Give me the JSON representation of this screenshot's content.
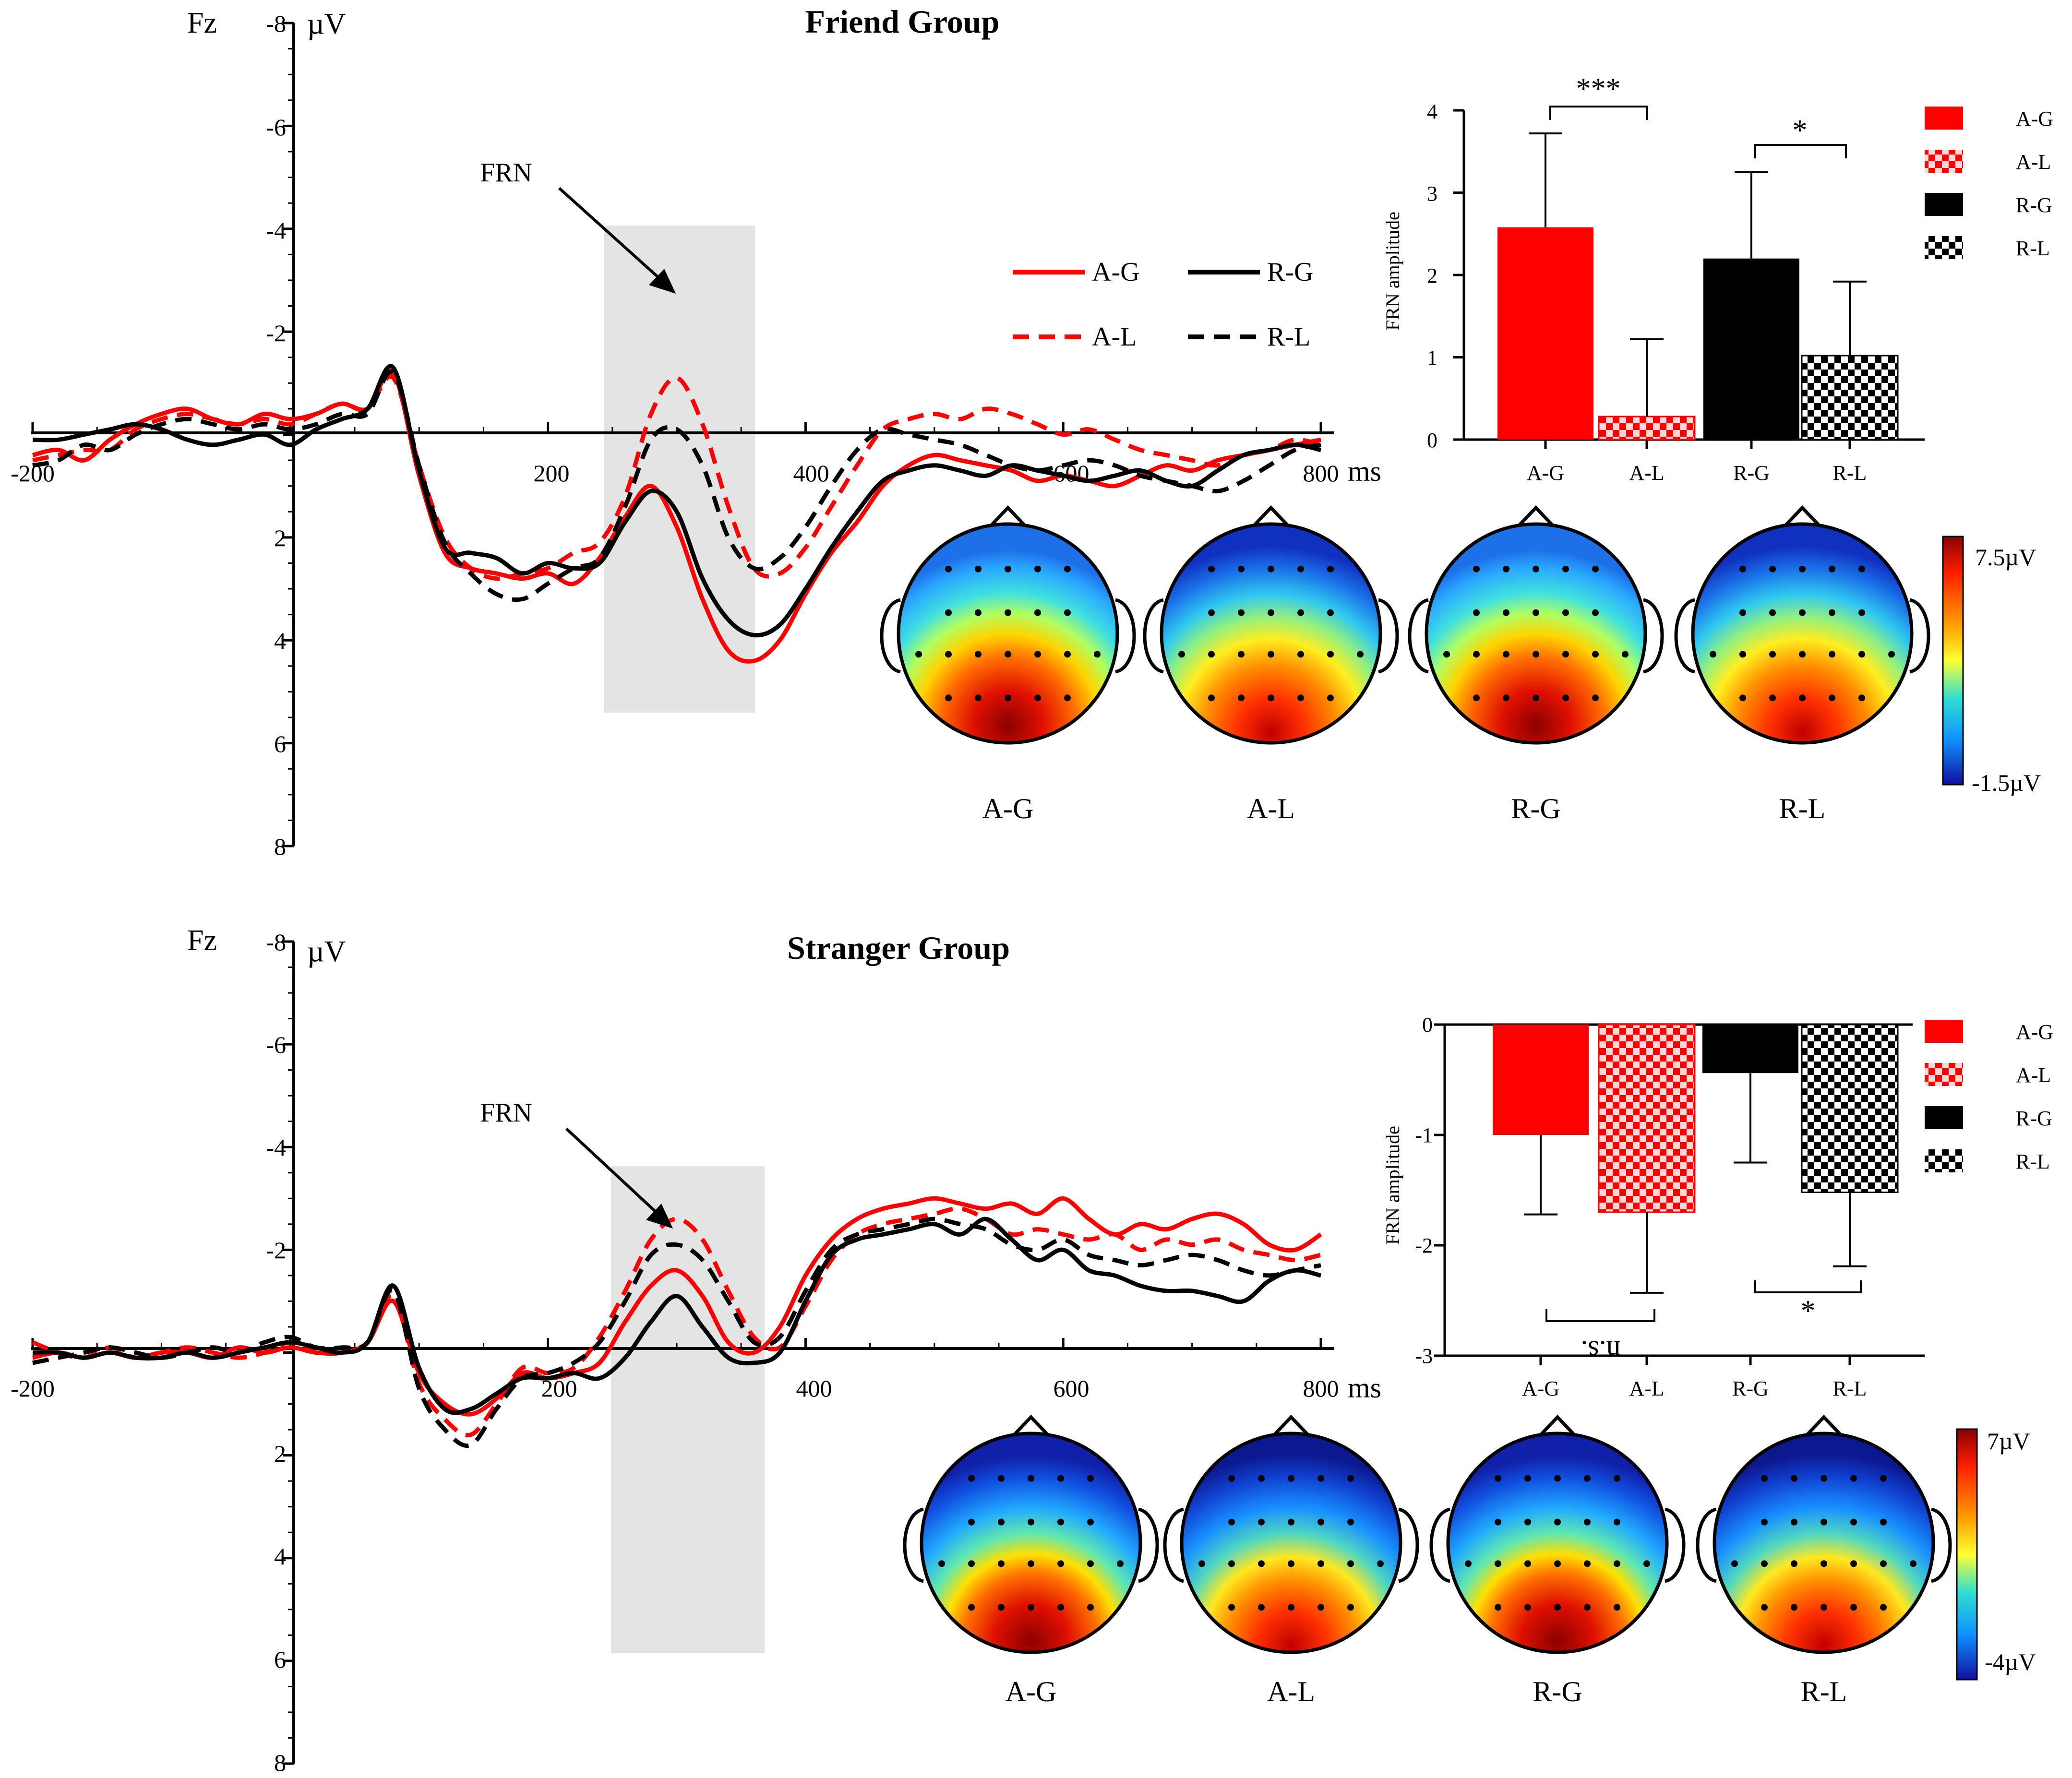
{
  "colors": {
    "red": "#ff0000",
    "black": "#000000",
    "shade": "#e4e4e4"
  },
  "icons": {
    "arrow": "arrow-icon",
    "head": "scalp-head-icon"
  },
  "scalp_condition_order": [
    "A-G",
    "A-L",
    "R-G",
    "R-L"
  ],
  "chart_data": [
    {
      "type": "line",
      "title": "Friend Group",
      "channel": "Fz",
      "ylabel": "µV",
      "xunit": "ms",
      "annotation": "FRN",
      "xlim": [
        -200,
        800
      ],
      "ylim": [
        -8,
        8
      ],
      "y_inverted": true,
      "xticks": [
        "-200",
        "200",
        "400",
        "600",
        "800"
      ],
      "yticks": [
        "-8",
        "-6",
        "-4",
        "-2",
        "2",
        "4",
        "6",
        "8"
      ],
      "shaded_window_ms": [
        240,
        355
      ],
      "x": [
        -200,
        -180,
        -160,
        -140,
        -120,
        -100,
        -80,
        -60,
        -40,
        -20,
        0,
        20,
        40,
        60,
        80,
        100,
        120,
        140,
        160,
        180,
        200,
        220,
        240,
        260,
        280,
        300,
        320,
        340,
        360,
        380,
        400,
        420,
        440,
        460,
        480,
        500,
        520,
        540,
        560,
        580,
        600,
        620,
        640,
        660,
        680,
        700,
        720,
        740,
        760,
        780,
        800
      ],
      "series": [
        {
          "name": "A-G",
          "color": "#ff0000",
          "dash": false,
          "values": [
            0.4,
            0.3,
            0.5,
            0.1,
            -0.2,
            -0.4,
            -0.5,
            -0.3,
            -0.2,
            -0.4,
            -0.3,
            -0.4,
            -0.6,
            -0.5,
            -1.2,
            0.8,
            2.3,
            2.6,
            2.7,
            2.8,
            2.7,
            2.9,
            2.4,
            1.6,
            1.0,
            1.8,
            3.2,
            4.2,
            4.4,
            4.0,
            3.1,
            2.3,
            1.7,
            1.0,
            0.6,
            0.4,
            0.5,
            0.6,
            0.7,
            0.9,
            0.8,
            0.9,
            1.0,
            0.8,
            0.6,
            0.7,
            0.5,
            0.4,
            0.3,
            0.2,
            0.1
          ]
        },
        {
          "name": "A-L",
          "color": "#ff0000",
          "dash": true,
          "values": [
            0.5,
            0.4,
            0.3,
            0.3,
            -0.1,
            -0.3,
            -0.4,
            -0.3,
            -0.2,
            -0.3,
            -0.2,
            -0.4,
            -0.6,
            -0.5,
            -1.1,
            0.6,
            2.0,
            2.6,
            2.8,
            2.7,
            2.6,
            2.3,
            2.1,
            1.2,
            -0.4,
            -1.1,
            -0.2,
            1.4,
            2.6,
            2.7,
            2.2,
            1.4,
            0.6,
            -0.1,
            -0.3,
            -0.4,
            -0.3,
            -0.5,
            -0.4,
            -0.2,
            0.0,
            -0.1,
            0.1,
            0.3,
            0.4,
            0.5,
            0.6,
            0.4,
            0.3,
            0.1,
            0.2
          ]
        },
        {
          "name": "R-G",
          "color": "#000000",
          "dash": false,
          "values": [
            0.1,
            0.1,
            0.0,
            -0.1,
            -0.2,
            -0.1,
            0.1,
            0.2,
            0.1,
            0.0,
            0.2,
            -0.1,
            -0.3,
            -0.5,
            -1.3,
            0.7,
            2.2,
            2.3,
            2.4,
            2.7,
            2.5,
            2.6,
            2.5,
            1.7,
            1.1,
            1.5,
            2.8,
            3.6,
            3.9,
            3.7,
            3.0,
            2.2,
            1.5,
            0.9,
            0.7,
            0.6,
            0.7,
            0.8,
            0.6,
            0.7,
            0.8,
            0.9,
            0.8,
            0.7,
            0.9,
            1.0,
            0.7,
            0.4,
            0.3,
            0.2,
            0.3
          ]
        },
        {
          "name": "R-L",
          "color": "#000000",
          "dash": true,
          "values": [
            0.6,
            0.5,
            0.2,
            0.3,
            0.0,
            -0.2,
            -0.3,
            -0.2,
            -0.1,
            -0.2,
            -0.1,
            -0.2,
            -0.4,
            -0.4,
            -1.2,
            0.6,
            2.1,
            2.7,
            3.1,
            3.2,
            2.9,
            2.6,
            2.4,
            1.4,
            0.1,
            -0.1,
            0.6,
            2.0,
            2.6,
            2.4,
            1.8,
            1.0,
            0.3,
            -0.1,
            0.0,
            0.1,
            0.2,
            0.4,
            0.6,
            0.7,
            0.6,
            0.5,
            0.6,
            0.8,
            0.9,
            1.0,
            1.1,
            0.9,
            0.6,
            0.3,
            0.2
          ]
        }
      ]
    },
    {
      "type": "bar",
      "title": "",
      "ylabel": "FRN amplitude",
      "ylim": [
        0,
        4
      ],
      "yticks": [
        "0",
        "1",
        "2",
        "3",
        "4"
      ],
      "categories": [
        "A-G",
        "A-L",
        "R-G",
        "R-L"
      ],
      "values": [
        2.58,
        0.28,
        2.2,
        1.02
      ],
      "errors": [
        1.14,
        0.94,
        1.05,
        0.9
      ],
      "patterns": [
        "solid-red",
        "checker-red",
        "solid-black",
        "checker-black"
      ],
      "significance": [
        {
          "pair": [
            "A-G",
            "A-L"
          ],
          "label": "***"
        },
        {
          "pair": [
            "R-G",
            "R-L"
          ],
          "label": "*"
        }
      ]
    },
    {
      "type": "heatmap",
      "title": "",
      "colorbar": {
        "max_label": "7.5µV",
        "min_label": "-1.5µV",
        "max": 7.5,
        "min": -1.5
      },
      "maps": [
        {
          "label": "A-G",
          "posterior_peak": 7.3,
          "frontal_level": -0.4
        },
        {
          "label": "A-L",
          "posterior_peak": 6.4,
          "frontal_level": -1.2
        },
        {
          "label": "R-G",
          "posterior_peak": 7.0,
          "frontal_level": -0.4
        },
        {
          "label": "R-L",
          "posterior_peak": 5.9,
          "frontal_level": -0.8
        }
      ]
    },
    {
      "type": "line",
      "title": "Stranger Group",
      "channel": "Fz",
      "ylabel": "µV",
      "xunit": "ms",
      "annotation": "FRN",
      "xlim": [
        -200,
        800
      ],
      "ylim": [
        -8,
        8
      ],
      "y_inverted": true,
      "xticks": [
        "-200",
        "200",
        "400",
        "600",
        "800"
      ],
      "yticks": [
        "-8",
        "-6",
        "-4",
        "-2",
        "2",
        "4",
        "6",
        "8"
      ],
      "shaded_window_ms": [
        250,
        365
      ],
      "x": [
        -200,
        -180,
        -160,
        -140,
        -120,
        -100,
        -80,
        -60,
        -40,
        -20,
        0,
        20,
        40,
        60,
        80,
        100,
        120,
        140,
        160,
        180,
        200,
        220,
        240,
        260,
        280,
        300,
        320,
        340,
        360,
        380,
        400,
        420,
        440,
        460,
        480,
        500,
        520,
        540,
        560,
        580,
        600,
        620,
        640,
        660,
        680,
        700,
        720,
        740,
        760,
        780,
        800
      ],
      "series": [
        {
          "name": "A-G",
          "color": "#ff0000",
          "dash": false,
          "values": [
            0.1,
            0.0,
            0.1,
            0.0,
            0.1,
            0.0,
            0.0,
            0.1,
            -0.1,
            0.0,
            -0.1,
            0.0,
            0.0,
            -0.2,
            -1.0,
            0.4,
            1.0,
            1.2,
            0.9,
            0.4,
            0.5,
            0.4,
            0.2,
            -0.6,
            -1.3,
            -1.6,
            -1.1,
            -0.2,
            0.0,
            -0.5,
            -1.5,
            -2.2,
            -2.6,
            -2.8,
            -2.9,
            -3.0,
            -2.9,
            -2.8,
            -2.9,
            -2.7,
            -3.0,
            -2.6,
            -2.3,
            -2.5,
            -2.4,
            -2.6,
            -2.7,
            -2.5,
            -2.1,
            -2.0,
            -2.3
          ]
        },
        {
          "name": "A-L",
          "color": "#ff0000",
          "dash": true,
          "values": [
            -0.2,
            0.0,
            0.1,
            -0.1,
            0.1,
            0.0,
            -0.1,
            0.0,
            0.1,
            0.0,
            -0.2,
            0.0,
            0.0,
            -0.2,
            -1.1,
            0.6,
            1.3,
            1.6,
            1.0,
            0.3,
            0.4,
            0.3,
            -0.3,
            -1.2,
            -2.2,
            -2.6,
            -2.2,
            -1.2,
            -0.3,
            -0.1,
            -0.9,
            -1.8,
            -2.3,
            -2.5,
            -2.6,
            -2.7,
            -2.8,
            -2.6,
            -2.3,
            -2.4,
            -2.3,
            -2.2,
            -2.3,
            -2.0,
            -2.2,
            -2.1,
            -2.2,
            -2.0,
            -1.9,
            -1.8,
            -1.9
          ]
        },
        {
          "name": "R-G",
          "color": "#000000",
          "dash": false,
          "values": [
            0.0,
            0.0,
            0.1,
            0.0,
            0.1,
            0.1,
            0.0,
            0.1,
            0.0,
            -0.1,
            -0.2,
            -0.1,
            0.0,
            -0.2,
            -1.3,
            0.3,
            1.1,
            1.1,
            0.8,
            0.5,
            0.5,
            0.4,
            0.5,
            0.1,
            -0.6,
            -1.1,
            -0.5,
            0.1,
            0.2,
            0.0,
            -1.0,
            -1.9,
            -2.2,
            -2.3,
            -2.4,
            -2.5,
            -2.3,
            -2.6,
            -2.2,
            -1.8,
            -2.0,
            -1.6,
            -1.5,
            -1.3,
            -1.2,
            -1.2,
            -1.1,
            -1.0,
            -1.4,
            -1.6,
            -1.5
          ]
        },
        {
          "name": "R-L",
          "color": "#000000",
          "dash": true,
          "values": [
            0.2,
            0.1,
            0.0,
            -0.1,
            0.0,
            0.1,
            0.0,
            -0.1,
            0.0,
            -0.2,
            -0.3,
            -0.1,
            -0.1,
            -0.2,
            -1.2,
            0.7,
            1.5,
            1.8,
            1.1,
            0.5,
            0.4,
            0.2,
            -0.2,
            -1.0,
            -1.9,
            -2.1,
            -1.8,
            -1.0,
            -0.2,
            -0.3,
            -1.2,
            -2.0,
            -2.3,
            -2.4,
            -2.5,
            -2.6,
            -2.5,
            -2.4,
            -2.1,
            -2.0,
            -2.2,
            -1.9,
            -1.8,
            -1.7,
            -1.8,
            -1.9,
            -1.8,
            -1.6,
            -1.5,
            -1.6,
            -1.7
          ]
        }
      ]
    },
    {
      "type": "bar",
      "title": "",
      "ylabel": "FRN amplitude",
      "ylim": [
        -3,
        0
      ],
      "yticks": [
        "0",
        "-1",
        "-2",
        "-3"
      ],
      "categories": [
        "A-G",
        "A-L",
        "R-G",
        "R-L"
      ],
      "values": [
        -1.0,
        -1.7,
        -0.44,
        -1.52
      ],
      "errors": [
        0.72,
        0.73,
        0.81,
        0.67
      ],
      "patterns": [
        "solid-red",
        "checker-red",
        "solid-black",
        "checker-black"
      ],
      "significance": [
        {
          "pair": [
            "A-G",
            "A-L"
          ],
          "label": "n.s."
        },
        {
          "pair": [
            "R-G",
            "R-L"
          ],
          "label": "*"
        }
      ]
    },
    {
      "type": "heatmap",
      "title": "",
      "colorbar": {
        "max_label": "7µV",
        "min_label": "-4µV",
        "max": 7,
        "min": -4
      },
      "maps": [
        {
          "label": "A-G",
          "posterior_peak": 6.9,
          "frontal_level": -3.2
        },
        {
          "label": "A-L",
          "posterior_peak": 6.0,
          "frontal_level": -3.8
        },
        {
          "label": "R-G",
          "posterior_peak": 6.6,
          "frontal_level": -3.2
        },
        {
          "label": "R-L",
          "posterior_peak": 5.6,
          "frontal_level": -3.4
        }
      ]
    }
  ]
}
